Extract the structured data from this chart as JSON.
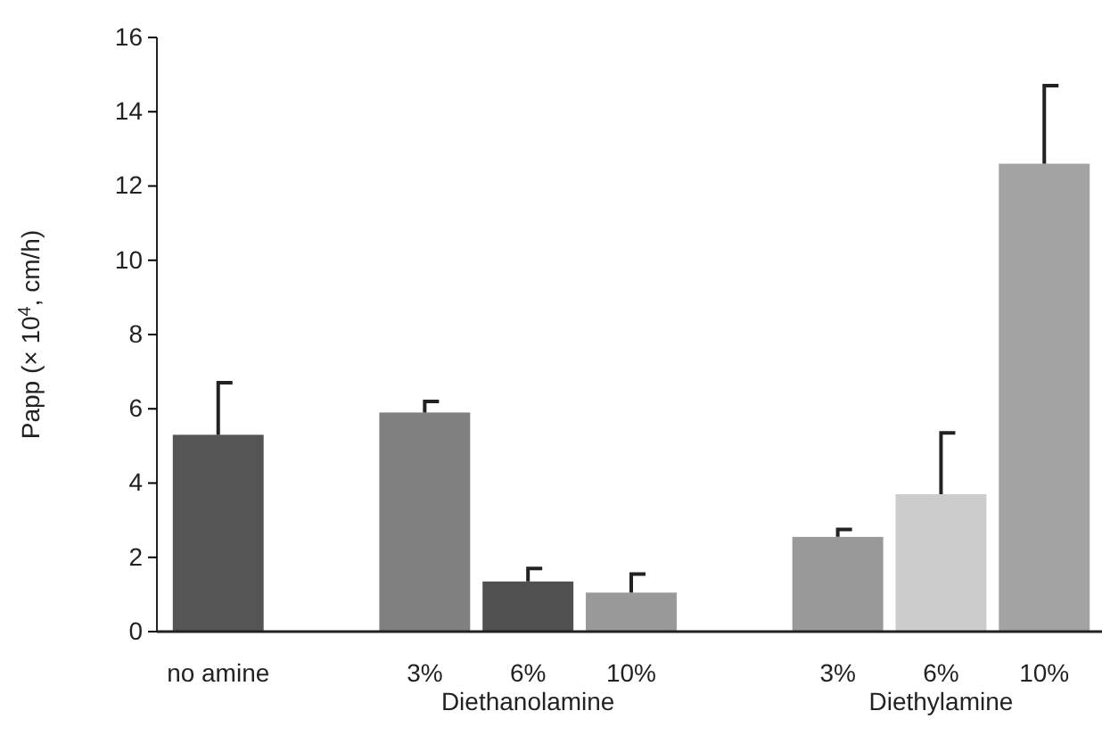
{
  "chart_data": {
    "type": "bar",
    "ylabel": "Papp (× 10$^{4}$, cm/h)",
    "categories": [
      "no amine",
      null,
      "3%",
      "6%",
      "10%",
      null,
      "3%",
      "6%",
      "10%"
    ],
    "values": [
      5.3,
      null,
      5.9,
      1.35,
      1.05,
      null,
      2.55,
      3.7,
      12.6
    ],
    "colors": [
      "#555555",
      null,
      "#808080",
      "#505050",
      "#999999",
      null,
      "#999999",
      "#cccccc",
      "#a3a3a3"
    ],
    "errors": [
      [
        5.3,
        6.7
      ],
      null,
      [
        5.9,
        6.2
      ],
      [
        1.35,
        1.7
      ],
      [
        1.05,
        1.55
      ],
      null,
      [
        2.55,
        2.75
      ],
      [
        3.7,
        5.35
      ],
      [
        12.6,
        14.7
      ]
    ],
    "ylim": [
      0,
      16
    ],
    "yticks": [
      0,
      2,
      4,
      6,
      8,
      10,
      12,
      14,
      16
    ],
    "grid": false,
    "annotations": [
      "Diethanolamine",
      "Diethylamine"
    ]
  }
}
